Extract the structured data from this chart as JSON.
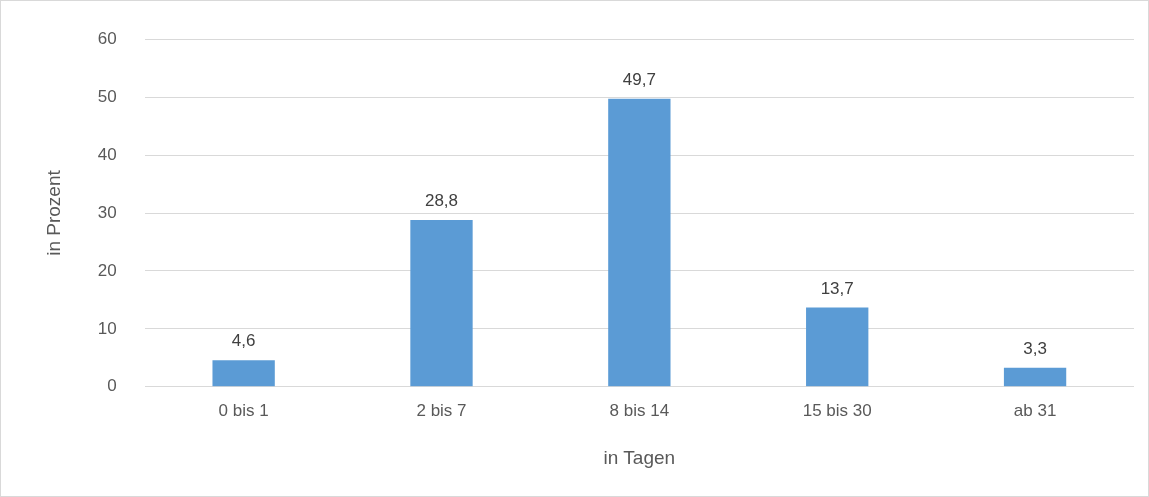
{
  "chart_data": {
    "type": "bar",
    "xlabel": "in Tagen",
    "ylabel": "in Prozent",
    "categories": [
      "0 bis 1",
      "2 bis 7",
      "8 bis 14",
      "15 bis 30",
      "ab 31"
    ],
    "values": [
      4.6,
      28.8,
      49.7,
      13.7,
      3.3
    ],
    "value_labels": [
      "4,6",
      "28,8",
      "49,7",
      "13,7",
      "3,3"
    ],
    "color": "#5b9bd5",
    "ylim": [
      0,
      60
    ],
    "yticks": [
      0,
      10,
      20,
      30,
      40,
      50,
      60
    ],
    "grid": "y",
    "legend": false
  }
}
